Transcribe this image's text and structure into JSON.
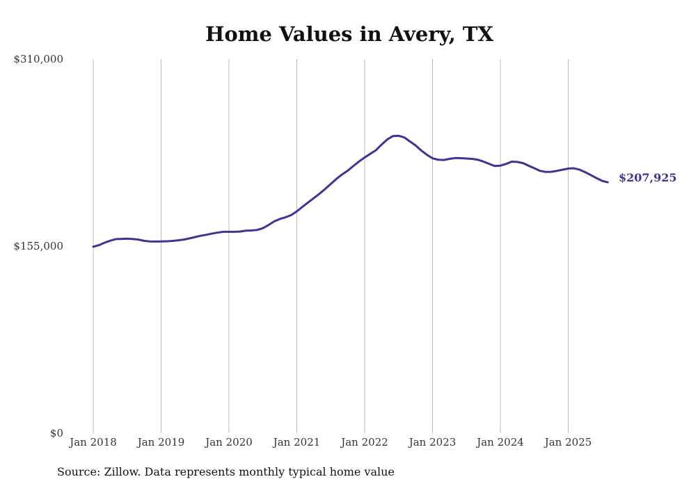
{
  "chart_data": {
    "type": "line",
    "title": "Home Values in Avery, TX",
    "source": "Source: Zillow. Data represents monthly typical home value",
    "xlabel": "",
    "ylabel": "",
    "x_ticks": [
      "Jan 2018",
      "Jan 2019",
      "Jan 2020",
      "Jan 2021",
      "Jan 2022",
      "Jan 2023",
      "Jan 2024",
      "Jan 2025"
    ],
    "y_ticks": [
      "$0",
      "$155,000",
      "$310,000"
    ],
    "y_tick_values": [
      0,
      155000,
      310000
    ],
    "ylim": [
      0,
      310000
    ],
    "xlim": [
      "2018-01",
      "2025-08"
    ],
    "grid": "vertical",
    "line_color": "#3b3596",
    "end_label": "$207,925",
    "series": [
      {
        "x": [
          "2018-01",
          "2018-02",
          "2018-03",
          "2018-04",
          "2018-05",
          "2018-06",
          "2018-07",
          "2018-08",
          "2018-09",
          "2018-10",
          "2018-11",
          "2018-12",
          "2019-01",
          "2019-02",
          "2019-03",
          "2019-04",
          "2019-05",
          "2019-06",
          "2019-07",
          "2019-08",
          "2019-09",
          "2019-10",
          "2019-11",
          "2019-12",
          "2020-01",
          "2020-02",
          "2020-03",
          "2020-04",
          "2020-05",
          "2020-06",
          "2020-07",
          "2020-08",
          "2020-09",
          "2020-10",
          "2020-11",
          "2020-12",
          "2021-01",
          "2021-02",
          "2021-03",
          "2021-04",
          "2021-05",
          "2021-06",
          "2021-07",
          "2021-08",
          "2021-09",
          "2021-10",
          "2021-11",
          "2021-12",
          "2022-01",
          "2022-02",
          "2022-03",
          "2022-04",
          "2022-05",
          "2022-06",
          "2022-07",
          "2022-08",
          "2022-09",
          "2022-10",
          "2022-11",
          "2022-12",
          "2023-01",
          "2023-02",
          "2023-03",
          "2023-04",
          "2023-05",
          "2023-06",
          "2023-07",
          "2023-08",
          "2023-09",
          "2023-10",
          "2023-11",
          "2023-12",
          "2024-01",
          "2024-02",
          "2024-03",
          "2024-04",
          "2024-05",
          "2024-06",
          "2024-07",
          "2024-08",
          "2024-09",
          "2024-10",
          "2024-11",
          "2024-12",
          "2025-01",
          "2025-02",
          "2025-03",
          "2025-04",
          "2025-05",
          "2025-06",
          "2025-07",
          "2025-08"
        ],
        "values": [
          154500,
          155800,
          157800,
          159500,
          160800,
          161000,
          161200,
          160900,
          160400,
          159400,
          158900,
          158800,
          158900,
          159000,
          159300,
          159800,
          160400,
          161400,
          162500,
          163600,
          164400,
          165400,
          166200,
          166900,
          166900,
          166900,
          167100,
          167800,
          168000,
          168400,
          169900,
          172500,
          175500,
          177500,
          178900,
          180700,
          183800,
          187600,
          191200,
          194800,
          198400,
          202300,
          206500,
          210700,
          214400,
          217500,
          221400,
          225100,
          228500,
          231500,
          234500,
          239200,
          243400,
          246200,
          246500,
          245100,
          241800,
          238500,
          234300,
          230700,
          227800,
          226600,
          226400,
          227300,
          228000,
          227900,
          227600,
          227300,
          226600,
          225100,
          223200,
          221400,
          221700,
          223100,
          225000,
          224800,
          223800,
          221600,
          219600,
          217400,
          216500,
          216600,
          217400,
          218300,
          219300,
          219500,
          218400,
          216300,
          213900,
          211400,
          209100,
          207925
        ]
      }
    ]
  }
}
